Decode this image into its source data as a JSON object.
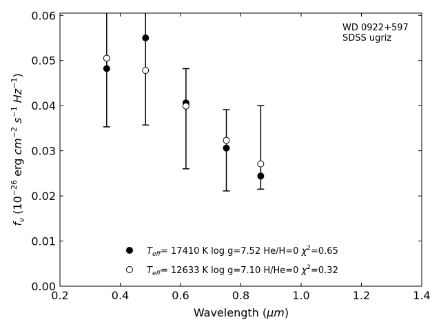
{
  "chart_data": {
    "type": "scatter",
    "xlabel_main": "Wavelength (",
    "xlabel_unit": "μm",
    "xlabel_close": ")",
    "ylabel": {
      "f": "f",
      "nu": "ν",
      "mid": " (10",
      "exp": "−26",
      "erg": " erg ",
      "cm": "cm",
      "cm_exp": "−2",
      "s": " s",
      "s_exp": "−1",
      "hz": " Hz",
      "hz_exp": "−1",
      "close": ")"
    },
    "annotation": [
      "WD 0922+597",
      "SDSS ugriz"
    ],
    "xlim": [
      0.2,
      1.4
    ],
    "ylim": [
      0.0,
      0.0605
    ],
    "x_ticks": [
      0.2,
      0.4,
      0.6,
      0.8,
      1.0,
      1.2,
      1.4
    ],
    "x_tick_labels": [
      "0.2",
      "0.4",
      "0.6",
      "0.8",
      "1.0",
      "1.2",
      "1.4"
    ],
    "y_ticks": [
      0.0,
      0.01,
      0.02,
      0.03,
      0.04,
      0.05,
      0.06
    ],
    "y_tick_labels": [
      "0.00",
      "0.01",
      "0.02",
      "0.03",
      "0.04",
      "0.05",
      "0.06"
    ],
    "observed": {
      "x": [
        0.355,
        0.484,
        0.618,
        0.752,
        0.866
      ],
      "y": [
        0.0482,
        0.055,
        0.0406,
        0.0306,
        0.0244
      ],
      "err_low": [
        0.0353,
        0.0357,
        0.026,
        0.0211,
        0.0215
      ],
      "err_high": [
        0.061,
        0.061,
        0.0482,
        0.0391,
        0.04
      ]
    },
    "series": [
      {
        "name_T": "T",
        "name_sub": "eff",
        "name_rest": "= 17410 K  log g=7.52  He/H=0  ",
        "name_chi": "χ",
        "name_chi_exp": "2",
        "name_chi_val": "=0.65",
        "marker": "filled",
        "x": [
          0.355,
          0.484,
          0.618,
          0.752,
          0.866
        ],
        "y": [
          0.0482,
          0.055,
          0.0406,
          0.0306,
          0.0244
        ]
      },
      {
        "name_T": "T",
        "name_sub": "eff",
        "name_rest": "= 12633 K  log g=7.10  H/He=0  ",
        "name_chi": "χ",
        "name_chi_exp": "2",
        "name_chi_val": "=0.32",
        "marker": "open",
        "x": [
          0.355,
          0.484,
          0.618,
          0.752,
          0.866
        ],
        "y": [
          0.0505,
          0.0478,
          0.0399,
          0.0323,
          0.0271
        ]
      }
    ],
    "legend_position": "lower-center",
    "grid": false
  }
}
